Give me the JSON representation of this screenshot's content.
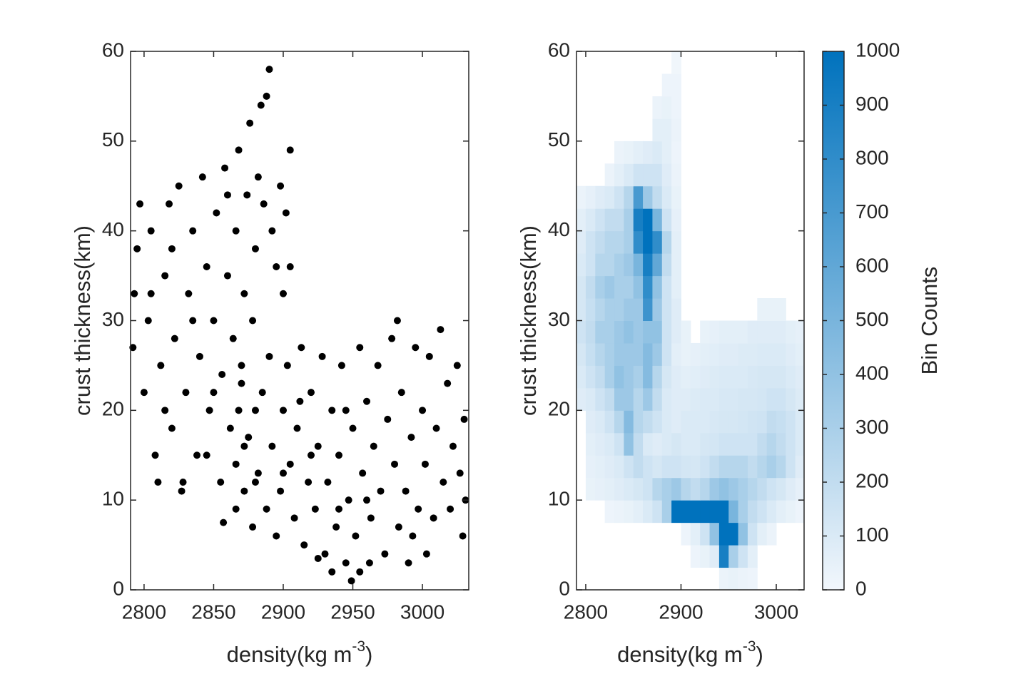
{
  "chart_data": [
    {
      "type": "scatter",
      "x_label": "density(kg m",
      "x_label_sup": "-3",
      "x_label_end": ")",
      "y_label": "crust thickness(km)",
      "color": "#000000",
      "xlim": [
        2790.3,
        3033.3
      ],
      "ylim": [
        0,
        60
      ],
      "xticks": [
        2800,
        2850,
        2900,
        2950,
        3000
      ],
      "yticks": [
        0,
        10,
        20,
        30,
        40,
        50,
        60
      ],
      "x": [
        2792,
        2793,
        2795,
        2797,
        2800,
        2803,
        2805,
        2808,
        2810,
        2812,
        2815,
        2818,
        2820,
        2822,
        2825,
        2828,
        2830,
        2832,
        2835,
        2838,
        2840,
        2842,
        2845,
        2847,
        2850,
        2852,
        2855,
        2856,
        2858,
        2860,
        2862,
        2864,
        2866,
        2868,
        2870,
        2872,
        2874,
        2876,
        2878,
        2880,
        2882,
        2884,
        2886,
        2888,
        2890,
        2892,
        2895,
        2898,
        2902,
        2905,
        2905,
        2900,
        2880,
        2872,
        2815,
        2805,
        2835,
        2850,
        2820,
        2860,
        2845,
        2857,
        2827,
        2866,
        2866,
        2868,
        2872,
        2875,
        2878,
        2882,
        2885,
        2888,
        2890,
        2892,
        2895,
        2898,
        2900,
        2903,
        2905,
        2908,
        2910,
        2913,
        2915,
        2918,
        2920,
        2923,
        2925,
        2928,
        2930,
        2932,
        2935,
        2938,
        2940,
        2942,
        2945,
        2947,
        2949,
        2950,
        2952,
        2955,
        2957,
        2960,
        2962,
        2963,
        2965,
        2968,
        2970,
        2973,
        2975,
        2978,
        2980,
        2982,
        2983,
        2985,
        2988,
        2990,
        2992,
        2995,
        2997,
        3000,
        3002,
        3005,
        3008,
        3010,
        3013,
        3015,
        3018,
        3020,
        3022,
        3025,
        3027,
        3030,
        3031,
        3029,
        2955,
        2940,
        2925,
        2935,
        2960,
        2920,
        2945,
        2900,
        2912,
        2993,
        3003,
        2880,
        2870
      ],
      "y": [
        27,
        33,
        38,
        43,
        22,
        30,
        40,
        15,
        12,
        25,
        35,
        43,
        18,
        28,
        45,
        12,
        22,
        33,
        40,
        15,
        26,
        46,
        36,
        20,
        30,
        42,
        12,
        24,
        47,
        35,
        18,
        28,
        40,
        49,
        23,
        33,
        44,
        52,
        30,
        38,
        46,
        54,
        43,
        55,
        58,
        40,
        36,
        45,
        42,
        49,
        36,
        33,
        20,
        16,
        20,
        33,
        30,
        22,
        38,
        44,
        15,
        7.5,
        11,
        9,
        14,
        20,
        11,
        17,
        7,
        13,
        22,
        9,
        26,
        16,
        6,
        11,
        20,
        25,
        14,
        8,
        18,
        27,
        5,
        12,
        22,
        9,
        16,
        26,
        4,
        12,
        20,
        7,
        15,
        25,
        3,
        10,
        1,
        18,
        6,
        27,
        13,
        21,
        3,
        8,
        16,
        25,
        11,
        4,
        19,
        28,
        14,
        30,
        7,
        22,
        11,
        3,
        17,
        27,
        9,
        20,
        14,
        26,
        8,
        18,
        29,
        12,
        23,
        9,
        16,
        25,
        13,
        19,
        10,
        6,
        2,
        9,
        3.5,
        2,
        10,
        15,
        20,
        13,
        21,
        6,
        4,
        12,
        25
      ]
    },
    {
      "type": "histogram2d",
      "x_label": "density(kg m",
      "x_label_sup": "-3",
      "x_label_end": ")",
      "y_label": "crust thickness(km)",
      "xlim": [
        2790.3,
        3029.2
      ],
      "ylim": [
        0,
        60
      ],
      "xticks": [
        2800,
        2900,
        3000
      ],
      "yticks": [
        0,
        10,
        20,
        30,
        40,
        50,
        60
      ],
      "xbins": [
        2790,
        2800,
        2810,
        2820,
        2830,
        2840,
        2850,
        2860,
        2870,
        2880,
        2890,
        2900,
        2910,
        2920,
        2930,
        2940,
        2950,
        2960,
        2970,
        2980,
        2990,
        3000,
        3010,
        3020,
        3030
      ],
      "ybins": [
        0,
        2.5,
        5,
        7.5,
        10,
        12.5,
        15,
        17.5,
        20,
        22.5,
        25,
        27.5,
        30,
        32.5,
        35,
        37.5,
        40,
        42.5,
        45,
        47.5,
        50,
        52.5,
        55,
        57.5,
        60
      ],
      "counts": [
        [
          null,
          null,
          null,
          null,
          null,
          null,
          null,
          null,
          null,
          null,
          null,
          null,
          null,
          null,
          null,
          30,
          40,
          30,
          20,
          null,
          null,
          null,
          null,
          null
        ],
        [
          null,
          null,
          null,
          null,
          null,
          null,
          null,
          null,
          null,
          null,
          null,
          null,
          20,
          40,
          80,
          900,
          300,
          150,
          60,
          null,
          null,
          null,
          null,
          null
        ],
        [
          null,
          null,
          null,
          null,
          null,
          null,
          null,
          null,
          null,
          null,
          null,
          20,
          60,
          150,
          400,
          1000,
          1000,
          400,
          150,
          60,
          30,
          null,
          null,
          null
        ],
        [
          null,
          null,
          null,
          20,
          30,
          40,
          60,
          100,
          150,
          300,
          1000,
          1000,
          1000,
          1000,
          1000,
          1000,
          500,
          300,
          200,
          150,
          100,
          60,
          40,
          20
        ],
        [
          null,
          40,
          50,
          60,
          80,
          100,
          120,
          150,
          250,
          300,
          350,
          250,
          200,
          250,
          350,
          400,
          350,
          300,
          250,
          200,
          150,
          120,
          80,
          50
        ],
        [
          null,
          50,
          60,
          80,
          100,
          150,
          200,
          150,
          120,
          150,
          150,
          130,
          120,
          150,
          200,
          250,
          250,
          250,
          200,
          250,
          300,
          250,
          150,
          80
        ],
        [
          null,
          60,
          80,
          100,
          150,
          400,
          200,
          100,
          80,
          100,
          120,
          100,
          100,
          120,
          130,
          150,
          150,
          150,
          150,
          200,
          250,
          200,
          150,
          100
        ],
        [
          null,
          80,
          100,
          150,
          250,
          450,
          250,
          200,
          150,
          100,
          80,
          100,
          100,
          100,
          110,
          120,
          120,
          130,
          140,
          150,
          200,
          180,
          150,
          100
        ],
        [
          80,
          100,
          150,
          200,
          350,
          350,
          250,
          350,
          200,
          100,
          80,
          80,
          90,
          100,
          100,
          110,
          110,
          120,
          120,
          130,
          150,
          150,
          120,
          90
        ],
        [
          100,
          150,
          200,
          300,
          400,
          350,
          300,
          450,
          250,
          120,
          80,
          60,
          70,
          80,
          90,
          100,
          100,
          100,
          110,
          120,
          120,
          120,
          100,
          80
        ],
        [
          120,
          180,
          250,
          300,
          350,
          350,
          350,
          450,
          350,
          150,
          60,
          40,
          50,
          60,
          70,
          80,
          80,
          90,
          90,
          100,
          100,
          100,
          80,
          60
        ],
        [
          150,
          200,
          300,
          300,
          350,
          400,
          350,
          400,
          400,
          150,
          80,
          40,
          null,
          40,
          50,
          60,
          60,
          60,
          80,
          80,
          80,
          80,
          60,
          50
        ],
        [
          120,
          180,
          250,
          300,
          300,
          350,
          350,
          750,
          350,
          150,
          80,
          null,
          null,
          null,
          null,
          null,
          null,
          null,
          null,
          40,
          40,
          40,
          null,
          null
        ],
        [
          120,
          200,
          300,
          350,
          300,
          300,
          400,
          800,
          400,
          150,
          60,
          null,
          null,
          null,
          null,
          null,
          null,
          null,
          null,
          null,
          null,
          null,
          null,
          null
        ],
        [
          100,
          150,
          250,
          250,
          300,
          350,
          500,
          900,
          600,
          200,
          60,
          null,
          null,
          null,
          null,
          null,
          null,
          null,
          null,
          null,
          null,
          null,
          null,
          null
        ],
        [
          80,
          150,
          200,
          250,
          250,
          300,
          800,
          1000,
          800,
          250,
          60,
          null,
          null,
          null,
          null,
          null,
          null,
          null,
          null,
          null,
          null,
          null,
          null,
          null
        ],
        [
          60,
          100,
          150,
          200,
          200,
          300,
          900,
          1000,
          500,
          150,
          50,
          null,
          null,
          null,
          null,
          null,
          null,
          null,
          null,
          null,
          null,
          null,
          null,
          null
        ],
        [
          30,
          50,
          80,
          100,
          150,
          250,
          700,
          350,
          200,
          100,
          40,
          null,
          null,
          null,
          null,
          null,
          null,
          null,
          null,
          null,
          null,
          null,
          null,
          null
        ],
        [
          null,
          null,
          null,
          30,
          60,
          100,
          150,
          150,
          150,
          80,
          30,
          null,
          null,
          null,
          null,
          null,
          null,
          null,
          null,
          null,
          null,
          null,
          null,
          null
        ],
        [
          null,
          null,
          null,
          null,
          30,
          40,
          60,
          80,
          100,
          60,
          20,
          null,
          null,
          null,
          null,
          null,
          null,
          null,
          null,
          null,
          null,
          null,
          null,
          null
        ],
        [
          null,
          null,
          null,
          null,
          null,
          null,
          null,
          null,
          60,
          60,
          30,
          null,
          null,
          null,
          null,
          null,
          null,
          null,
          null,
          null,
          null,
          null,
          null,
          null
        ],
        [
          null,
          null,
          null,
          null,
          null,
          null,
          null,
          null,
          30,
          40,
          20,
          null,
          null,
          null,
          null,
          null,
          null,
          null,
          null,
          null,
          null,
          null,
          null,
          null
        ],
        [
          null,
          null,
          null,
          null,
          null,
          null,
          null,
          null,
          null,
          20,
          20,
          null,
          null,
          null,
          null,
          null,
          null,
          null,
          null,
          null,
          null,
          null,
          null,
          null
        ],
        [
          null,
          null,
          null,
          null,
          null,
          null,
          null,
          null,
          null,
          null,
          10,
          null,
          null,
          null,
          null,
          null,
          null,
          null,
          null,
          null,
          null,
          null,
          null,
          null
        ]
      ],
      "colormap": [
        "#f2f7fc",
        "#0072bd"
      ],
      "colorbar": {
        "label": "Bin Counts",
        "lim": [
          0,
          1000
        ],
        "ticks": [
          0,
          100,
          200,
          300,
          400,
          500,
          600,
          700,
          800,
          900,
          1000
        ]
      }
    }
  ]
}
